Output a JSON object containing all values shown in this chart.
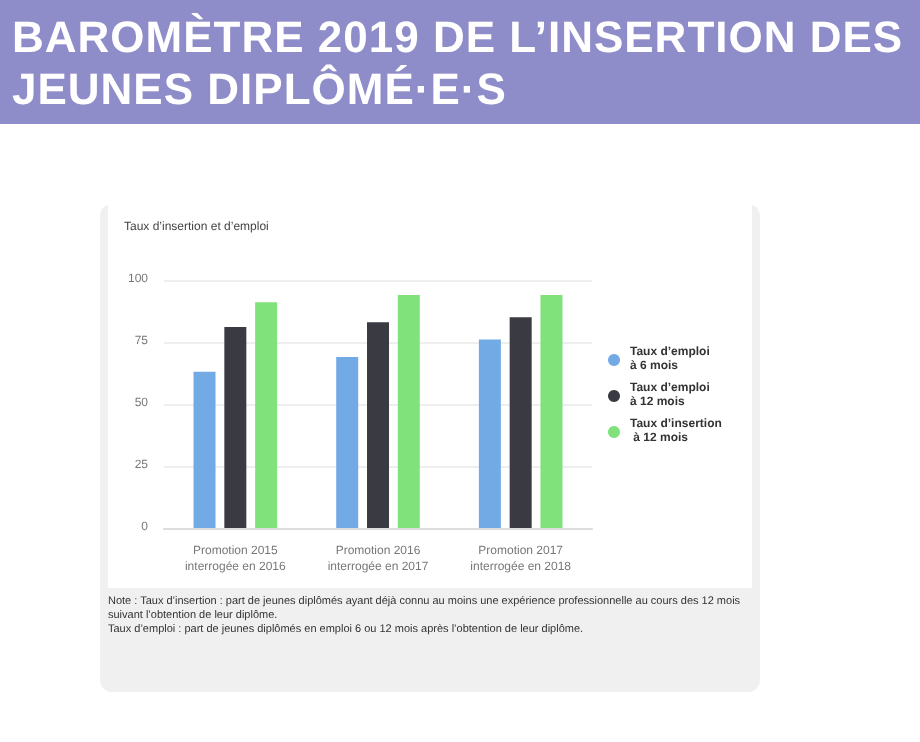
{
  "chart_data": {
    "type": "bar",
    "title": "BAROMÈTRE 2019 DE L’INSERTION DES JEUNES DIPLÔMÉ·E·S",
    "subtitle": "Taux d’insertion et d’emploi",
    "categories": [
      "Promotion 2015\ninterrogée en 2016",
      "Promotion 2016\ninterrogée en 2017",
      "Promotion 2017\ninterrogée en 2018"
    ],
    "series": [
      {
        "name": "Taux d’emploi à 6 mois",
        "color": "#72aae6",
        "values": [
          63,
          69,
          76
        ]
      },
      {
        "name": "Taux d’emploi à 12 mois",
        "color": "#3a3a42",
        "values": [
          81,
          83,
          85
        ]
      },
      {
        "name": "Taux d’insertion à 12 mois",
        "color": "#80e27a",
        "values": [
          91,
          94,
          94
        ]
      }
    ],
    "ylim": [
      0,
      100
    ],
    "yticks": [
      0,
      25,
      50,
      75,
      100
    ],
    "grid": "y",
    "legend": "right",
    "annotations": [
      "Note : Taux d’insertion : part de jeunes diplômés ayant déjà connu au moins une expérience professionnelle au cours des 12 mois suivant l’obtention de leur diplôme.",
      "Taux d’emploi : part de jeunes diplômés en emploi 6 ou 12 mois après l’obtention de leur diplôme."
    ]
  }
}
